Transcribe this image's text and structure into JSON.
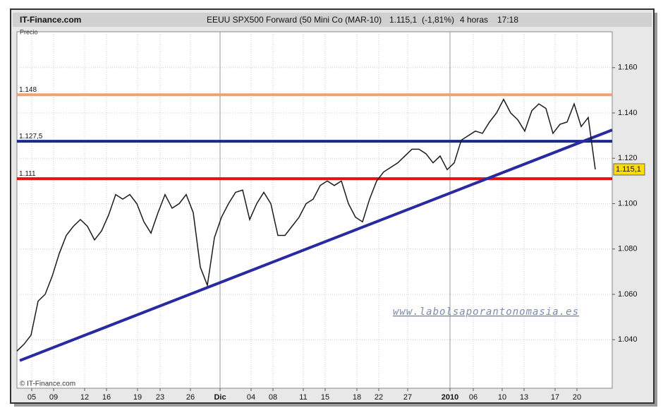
{
  "chart_data": {
    "type": "line",
    "site": "IT-Finance.com",
    "title": "EEUU SPX500 Forward (50 Mini Co (MAR-10)",
    "last_price": "1.115,1",
    "change": "(-1,81%)",
    "period": "4 horas",
    "time": "17:18",
    "y_label": "Precio",
    "copyright": "© IT-Finance.com",
    "watermark": "www.labolsaporantonomasia.es",
    "x": [
      0,
      1,
      2,
      3,
      4,
      5,
      6,
      7,
      8,
      9,
      10,
      11,
      12,
      13,
      14,
      15,
      16,
      17,
      18,
      19,
      20,
      21,
      22,
      23,
      24,
      25,
      26,
      27,
      28,
      29,
      30,
      31,
      32,
      33,
      34,
      35,
      36,
      37,
      38,
      39,
      40,
      41,
      42,
      43,
      44,
      45,
      46,
      47,
      48,
      49,
      50,
      51,
      52,
      53,
      54,
      55,
      56,
      57,
      58,
      59,
      60,
      61,
      62,
      63,
      64,
      65,
      66,
      67,
      68,
      69,
      70,
      71,
      72,
      73,
      74,
      75,
      76,
      77,
      78,
      79,
      80,
      81,
      82
    ],
    "series": [
      {
        "color": "#1a1a1a",
        "values": [
          1035,
          1038,
          1042,
          1057,
          1060,
          1068,
          1078,
          1086,
          1090,
          1093,
          1090,
          1084,
          1088,
          1095,
          1104,
          1102,
          1104,
          1100,
          1092,
          1087,
          1096,
          1104,
          1098,
          1100,
          1104,
          1096,
          1072,
          1064,
          1085,
          1094,
          1100,
          1105,
          1106,
          1093,
          1100,
          1105,
          1100,
          1086,
          1086,
          1090,
          1094,
          1100,
          1102,
          1108,
          1110,
          1108,
          1110,
          1100,
          1094,
          1092,
          1102,
          1110,
          1114,
          1116,
          1118,
          1121,
          1124,
          1124,
          1122,
          1118,
          1121,
          1115,
          1118,
          1128,
          1130,
          1132,
          1131,
          1136,
          1140,
          1146,
          1140,
          1137,
          1132,
          1141,
          1144,
          1142,
          1131,
          1135,
          1136,
          1144,
          1134,
          1138,
          1115.1
        ]
      }
    ],
    "levels": [
      {
        "value": 1148,
        "label": "1.148",
        "color": "#f4a070"
      },
      {
        "value": 1127.5,
        "label": "1.127,5",
        "color": "#1a2a8a"
      },
      {
        "value": 1111,
        "label": "1.111",
        "color": "#e81010"
      }
    ],
    "trendline": {
      "x": [
        0.4,
        84.4
      ],
      "y": [
        1030.8,
        1132.5
      ],
      "color": "#2a2aa0"
    },
    "xlim": [
      0,
      84.4
    ],
    "ylim": [
      1018.6,
      1175.8
    ],
    "yticks": [
      {
        "value": 1040,
        "label": "1.040"
      },
      {
        "value": 1060,
        "label": "1.060"
      },
      {
        "value": 1080,
        "label": "1.080"
      },
      {
        "value": 1100,
        "label": "1.100"
      },
      {
        "value": 1120,
        "label": "1.120"
      },
      {
        "value": 1140,
        "label": "1.140"
      },
      {
        "value": 1160,
        "label": "1.160"
      }
    ],
    "xticks": [
      {
        "value": 2.1,
        "label": "05"
      },
      {
        "value": 5.2,
        "label": "09"
      },
      {
        "value": 9.6,
        "label": "12"
      },
      {
        "value": 12.7,
        "label": "16"
      },
      {
        "value": 17.1,
        "label": "19"
      },
      {
        "value": 20.3,
        "label": "23"
      },
      {
        "value": 24.6,
        "label": "26"
      },
      {
        "value": 28.8,
        "label": "Dic"
      },
      {
        "value": 33.2,
        "label": "04"
      },
      {
        "value": 36.3,
        "label": "08"
      },
      {
        "value": 40.6,
        "label": "11"
      },
      {
        "value": 43.7,
        "label": "15"
      },
      {
        "value": 48.2,
        "label": "18"
      },
      {
        "value": 51.3,
        "label": "22"
      },
      {
        "value": 55.4,
        "label": "27"
      },
      {
        "value": 61.4,
        "label": "2010"
      },
      {
        "value": 64.7,
        "label": "06"
      },
      {
        "value": 68.8,
        "label": "10"
      },
      {
        "value": 71.9,
        "label": "13"
      },
      {
        "value": 76.3,
        "label": "17"
      },
      {
        "value": 79.4,
        "label": "20"
      }
    ],
    "grid": true
  }
}
